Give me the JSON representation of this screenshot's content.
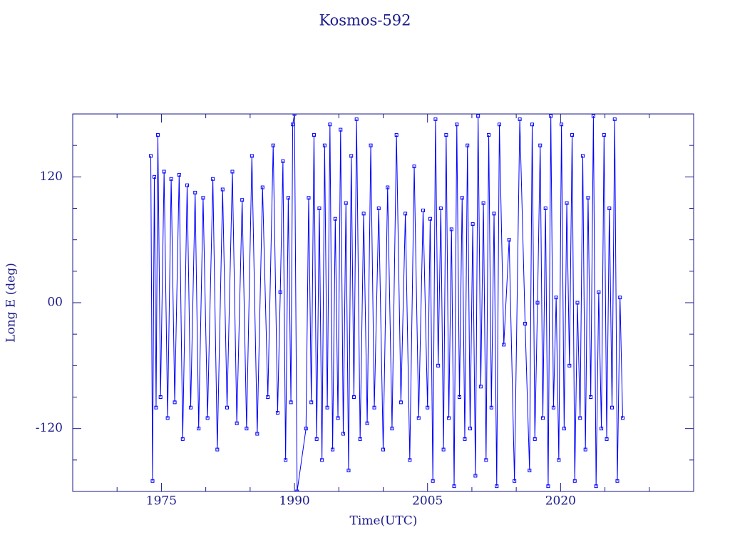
{
  "chart_data": {
    "type": "line",
    "title": "Kosmos-592",
    "xlabel": "Time(UTC)",
    "ylabel": "Long E (deg)",
    "color": "#0000ff",
    "xlim": [
      1965,
      2035
    ],
    "xticks": [
      1975,
      1990,
      2005,
      2020
    ],
    "xminorticks": [
      1970,
      1980,
      1985,
      1995,
      2000,
      2010,
      2015,
      2025,
      2030
    ],
    "ylim": [
      -180,
      180
    ],
    "yticks": [
      -120,
      {
        "value": 0,
        "label": "00"
      },
      120
    ],
    "yminorticks": [
      -150,
      -90,
      -60,
      -30,
      30,
      60,
      90,
      150
    ],
    "x": [
      1973.8,
      1974.0,
      1974.2,
      1974.4,
      1974.6,
      1974.9,
      1975.3,
      1975.7,
      1976.1,
      1976.5,
      1977.0,
      1977.4,
      1977.9,
      1978.3,
      1978.8,
      1979.2,
      1979.7,
      1980.2,
      1980.8,
      1981.3,
      1981.9,
      1982.4,
      1983.0,
      1983.5,
      1984.1,
      1984.6,
      1985.2,
      1985.8,
      1986.4,
      1987.0,
      1987.6,
      1988.1,
      1988.4,
      1988.7,
      1989.0,
      1989.3,
      1989.6,
      1989.8,
      1990.0,
      1990.3,
      1991.3,
      1991.6,
      1991.9,
      1992.2,
      1992.5,
      1992.8,
      1993.1,
      1993.4,
      1993.7,
      1994.0,
      1994.3,
      1994.6,
      1994.9,
      1995.2,
      1995.5,
      1995.8,
      1996.1,
      1996.4,
      1996.7,
      1997.0,
      1997.4,
      1997.8,
      1998.2,
      1998.6,
      1999.0,
      1999.5,
      2000.0,
      2000.5,
      2001.0,
      2001.5,
      2002.0,
      2002.5,
      2003.0,
      2003.5,
      2004.0,
      2004.5,
      2005.0,
      2005.3,
      2005.6,
      2005.9,
      2006.2,
      2006.5,
      2006.8,
      2007.1,
      2007.4,
      2007.7,
      2008.0,
      2008.3,
      2008.6,
      2008.9,
      2009.2,
      2009.5,
      2009.8,
      2010.1,
      2010.4,
      2010.7,
      2011.0,
      2011.3,
      2011.6,
      2011.9,
      2012.2,
      2012.5,
      2012.8,
      2013.1,
      2013.6,
      2014.2,
      2014.8,
      2015.4,
      2016.0,
      2016.5,
      2016.8,
      2017.1,
      2017.4,
      2017.7,
      2018.0,
      2018.3,
      2018.6,
      2018.9,
      2019.2,
      2019.5,
      2019.8,
      2020.1,
      2020.4,
      2020.7,
      2021.0,
      2021.3,
      2021.6,
      2021.9,
      2022.2,
      2022.5,
      2022.8,
      2023.1,
      2023.4,
      2023.7,
      2024.0,
      2024.3,
      2024.6,
      2024.9,
      2025.2,
      2025.5,
      2025.8,
      2026.1,
      2026.4,
      2026.7,
      2027.0
    ],
    "values": [
      140,
      -170,
      120,
      -100,
      160,
      -90,
      125,
      -110,
      118,
      -95,
      122,
      -130,
      112,
      -100,
      105,
      -120,
      100,
      -110,
      118,
      -140,
      108,
      -100,
      125,
      -115,
      98,
      -120,
      140,
      -125,
      110,
      -90,
      150,
      -105,
      10,
      135,
      -150,
      100,
      -95,
      170,
      180,
      -180,
      -120,
      100,
      -95,
      160,
      -130,
      90,
      -150,
      150,
      -100,
      170,
      -140,
      80,
      -110,
      165,
      -125,
      95,
      -160,
      140,
      -90,
      175,
      -130,
      85,
      -115,
      150,
      -100,
      90,
      -140,
      110,
      -120,
      160,
      -95,
      85,
      -150,
      130,
      -110,
      88,
      -100,
      80,
      -170,
      175,
      -60,
      90,
      -140,
      160,
      -110,
      70,
      -175,
      170,
      -90,
      100,
      -130,
      150,
      -120,
      75,
      -165,
      178,
      -80,
      95,
      -150,
      160,
      -100,
      85,
      -175,
      170,
      -40,
      60,
      -170,
      175,
      -20,
      -160,
      170,
      -130,
      0,
      150,
      -110,
      90,
      -175,
      178,
      -100,
      5,
      -150,
      170,
      -120,
      95,
      -60,
      160,
      -170,
      0,
      -110,
      140,
      -140,
      100,
      -90,
      178,
      -175,
      10,
      -120,
      160,
      -130,
      90,
      -100,
      175,
      -170,
      5,
      -110
    ]
  }
}
